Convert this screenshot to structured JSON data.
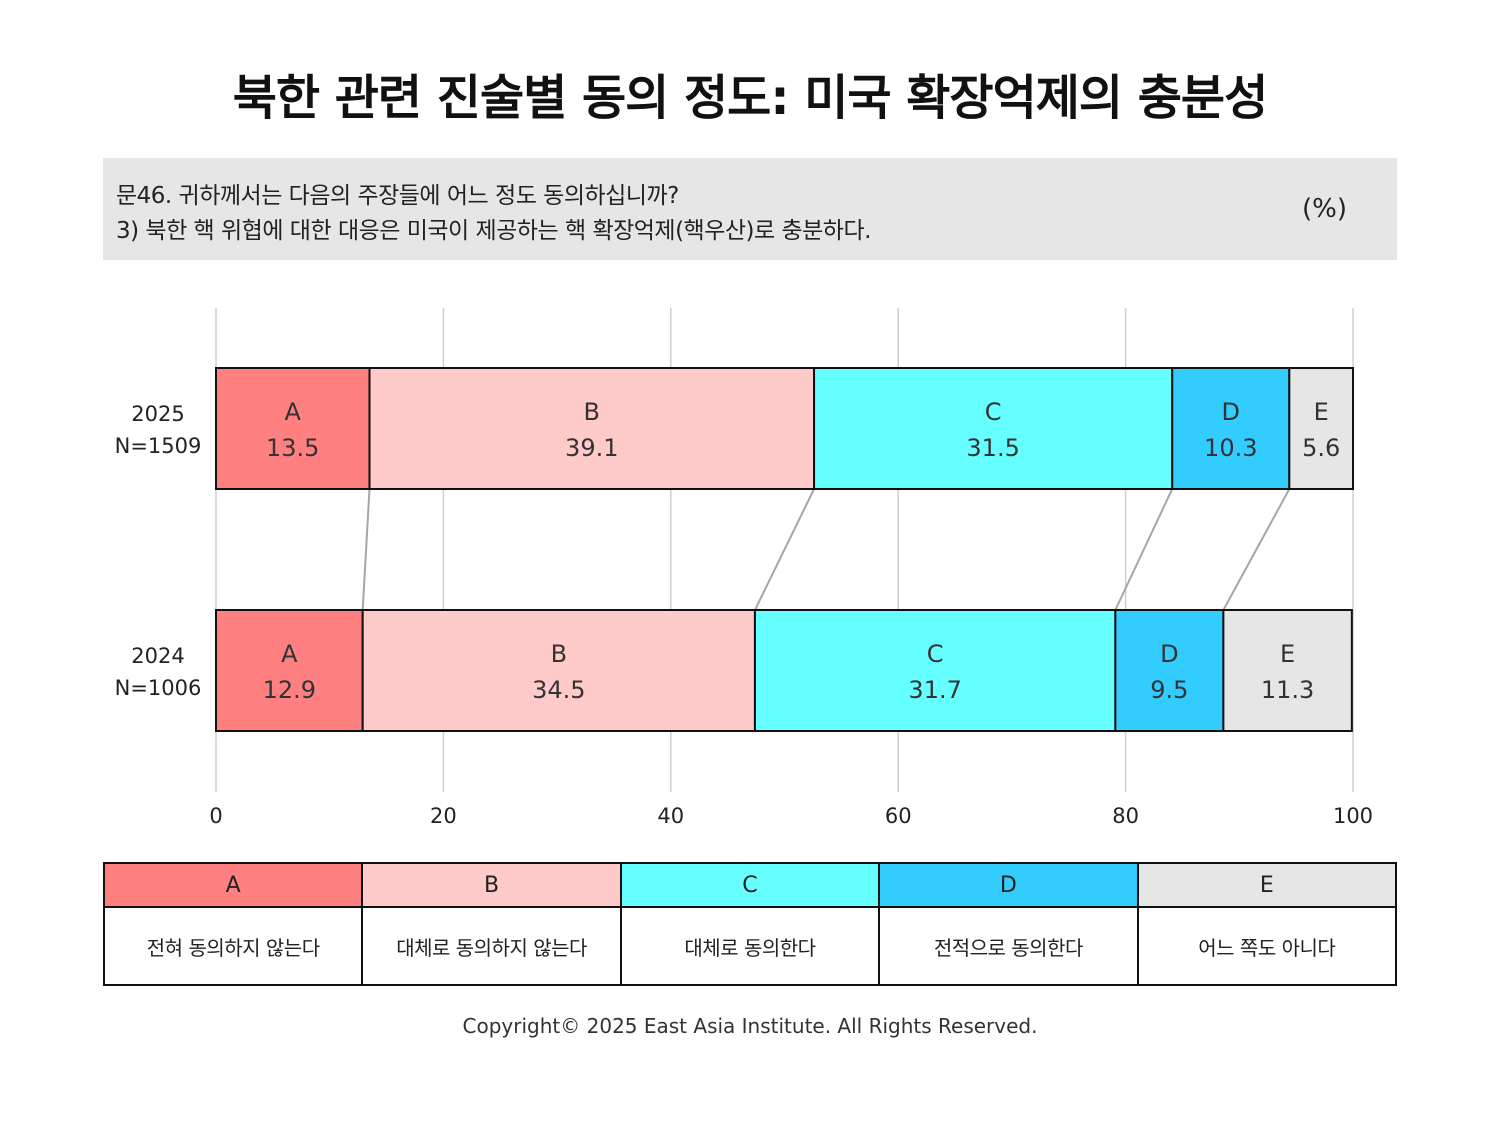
{
  "title": "북한 관련 진술별 동의 정도: 미국 확장억제의 충분성",
  "question": {
    "line1": "문46. 귀하께서는 다음의 주장들에 어느 정도 동의하십니까?",
    "line2": "3) 북한 핵 위협에 대한 대응은 미국이 제공하는 핵 확장억제(핵우산)로 충분하다.",
    "unit": "(%)"
  },
  "chart_data": {
    "type": "bar",
    "orientation": "horizontal",
    "stacked": true,
    "categories": [
      "2025\nN=1509",
      "2024\nN=1006"
    ],
    "series": [
      {
        "name": "A",
        "values": [
          13.5,
          12.9
        ],
        "color": "#ff8080"
      },
      {
        "name": "B",
        "values": [
          39.1,
          34.5
        ],
        "color": "#ffcaca"
      },
      {
        "name": "C",
        "values": [
          31.5,
          31.7
        ],
        "color": "#66ffff"
      },
      {
        "name": "D",
        "values": [
          10.3,
          9.5
        ],
        "color": "#33ccff"
      },
      {
        "name": "E",
        "values": [
          5.6,
          11.3
        ],
        "color": "#e6e6e6"
      }
    ],
    "xlim": [
      0,
      100
    ],
    "xticks": [
      0,
      20,
      40,
      60,
      80,
      100
    ],
    "grid": true,
    "connector_lines": true
  },
  "legend": {
    "items": [
      {
        "key": "A",
        "label": "전혀 동의하지 않는다",
        "color": "#ff8080"
      },
      {
        "key": "B",
        "label": "대체로 동의하지 않는다",
        "color": "#ffcaca"
      },
      {
        "key": "C",
        "label": "대체로 동의한다",
        "color": "#66ffff"
      },
      {
        "key": "D",
        "label": "전적으로 동의한다",
        "color": "#33ccff"
      },
      {
        "key": "E",
        "label": "어느 쪽도 아니다",
        "color": "#e6e6e6"
      }
    ]
  },
  "copyright": "Copyright© 2025 East Asia Institute. All Rights Reserved."
}
